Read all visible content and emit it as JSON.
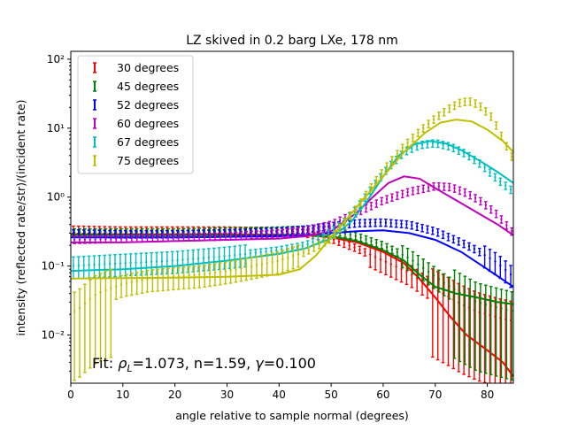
{
  "chart_data": {
    "type": "scatter",
    "title": "LZ skived in 0.2 barg LXe, 178 nm",
    "xlabel": "angle relative to sample normal (degrees)",
    "ylabel": "intensity (reflected rate/str)/(incident rate)",
    "xlim": [
      0,
      85
    ],
    "ylim": [
      0.002,
      130
    ],
    "yscale": "log",
    "xticks": [
      "0",
      "10",
      "20",
      "30",
      "40",
      "50",
      "60",
      "70",
      "80"
    ],
    "yticks": [
      "10⁻²",
      "10⁻¹",
      "10⁰",
      "10¹",
      "10²"
    ],
    "legend_position": "top-left",
    "annotation": {
      "prefix": "Fit: ",
      "rho": "ρ",
      "rho_sub": "L",
      "rho_value": "=1.073, n=1.59, ",
      "gamma": "γ",
      "gamma_value": "=0.100"
    },
    "series": [
      {
        "name": "30 degrees",
        "color": "#ff0000",
        "points": [
          [
            0,
            0.34
          ],
          [
            10,
            0.33
          ],
          [
            20,
            0.33
          ],
          [
            30,
            0.33
          ],
          [
            40,
            0.32
          ],
          [
            45,
            0.3
          ],
          [
            50,
            0.25
          ],
          [
            55,
            0.18
          ],
          [
            60,
            0.12
          ],
          [
            65,
            0.08
          ],
          [
            68,
            0.055
          ],
          [
            72,
            0.038
          ],
          [
            75,
            0.028
          ],
          [
            78,
            0.022
          ],
          [
            82,
            0.018
          ],
          [
            85,
            0.016
          ]
        ],
        "fit": [
          [
            0,
            0.29
          ],
          [
            10,
            0.29
          ],
          [
            20,
            0.29
          ],
          [
            30,
            0.29
          ],
          [
            40,
            0.285
          ],
          [
            45,
            0.28
          ],
          [
            50,
            0.26
          ],
          [
            55,
            0.22
          ],
          [
            60,
            0.16
          ],
          [
            64,
            0.11
          ],
          [
            67,
            0.065
          ],
          [
            70,
            0.035
          ],
          [
            73,
            0.018
          ],
          [
            76,
            0.01
          ],
          [
            80,
            0.006
          ],
          [
            83,
            0.004
          ],
          [
            85,
            0.0025
          ]
        ]
      },
      {
        "name": "45 degrees",
        "color": "#008000",
        "points": [
          [
            0,
            0.31
          ],
          [
            10,
            0.31
          ],
          [
            20,
            0.31
          ],
          [
            30,
            0.32
          ],
          [
            40,
            0.33
          ],
          [
            45,
            0.34
          ],
          [
            50,
            0.33
          ],
          [
            55,
            0.27
          ],
          [
            60,
            0.2
          ],
          [
            65,
            0.13
          ],
          [
            68,
            0.09
          ],
          [
            72,
            0.055
          ],
          [
            75,
            0.04
          ],
          [
            78,
            0.03
          ],
          [
            82,
            0.025
          ],
          [
            85,
            0.022
          ]
        ],
        "fit": [
          [
            0,
            0.28
          ],
          [
            10,
            0.28
          ],
          [
            20,
            0.28
          ],
          [
            30,
            0.28
          ],
          [
            40,
            0.28
          ],
          [
            45,
            0.28
          ],
          [
            50,
            0.27
          ],
          [
            55,
            0.23
          ],
          [
            60,
            0.17
          ],
          [
            64,
            0.12
          ],
          [
            67,
            0.075
          ],
          [
            70,
            0.05
          ],
          [
            74,
            0.04
          ],
          [
            78,
            0.035
          ],
          [
            82,
            0.03
          ],
          [
            85,
            0.028
          ]
        ]
      },
      {
        "name": "52 degrees",
        "color": "#0000ff",
        "points": [
          [
            0,
            0.3
          ],
          [
            10,
            0.29
          ],
          [
            20,
            0.29
          ],
          [
            30,
            0.3
          ],
          [
            40,
            0.32
          ],
          [
            45,
            0.34
          ],
          [
            50,
            0.38
          ],
          [
            55,
            0.42
          ],
          [
            60,
            0.43
          ],
          [
            65,
            0.4
          ],
          [
            70,
            0.32
          ],
          [
            75,
            0.22
          ],
          [
            78,
            0.17
          ],
          [
            82,
            0.11
          ],
          [
            85,
            0.07
          ]
        ],
        "fit": [
          [
            0,
            0.26
          ],
          [
            10,
            0.26
          ],
          [
            20,
            0.26
          ],
          [
            30,
            0.265
          ],
          [
            40,
            0.27
          ],
          [
            45,
            0.28
          ],
          [
            50,
            0.3
          ],
          [
            55,
            0.32
          ],
          [
            60,
            0.33
          ],
          [
            65,
            0.3
          ],
          [
            70,
            0.24
          ],
          [
            75,
            0.16
          ],
          [
            80,
            0.09
          ],
          [
            85,
            0.05
          ]
        ]
      },
      {
        "name": "60 degrees",
        "color": "#bf00bf",
        "points": [
          [
            0,
            0.24
          ],
          [
            10,
            0.25
          ],
          [
            20,
            0.26
          ],
          [
            30,
            0.27
          ],
          [
            40,
            0.3
          ],
          [
            45,
            0.33
          ],
          [
            50,
            0.4
          ],
          [
            55,
            0.6
          ],
          [
            60,
            0.9
          ],
          [
            65,
            1.2
          ],
          [
            70,
            1.45
          ],
          [
            73,
            1.4
          ],
          [
            76,
            1.15
          ],
          [
            79,
            0.85
          ],
          [
            82,
            0.55
          ],
          [
            85,
            0.3
          ]
        ],
        "fit": [
          [
            0,
            0.22
          ],
          [
            10,
            0.22
          ],
          [
            20,
            0.23
          ],
          [
            30,
            0.24
          ],
          [
            40,
            0.25
          ],
          [
            45,
            0.27
          ],
          [
            50,
            0.32
          ],
          [
            55,
            0.6
          ],
          [
            58,
            1.0
          ],
          [
            61,
            1.6
          ],
          [
            64,
            2.0
          ],
          [
            67,
            1.85
          ],
          [
            70,
            1.35
          ],
          [
            74,
            0.9
          ],
          [
            78,
            0.6
          ],
          [
            82,
            0.4
          ],
          [
            85,
            0.28
          ]
        ]
      },
      {
        "name": "67 degrees",
        "color": "#00bfbf",
        "points": [
          [
            0,
            0.1
          ],
          [
            10,
            0.11
          ],
          [
            20,
            0.12
          ],
          [
            30,
            0.14
          ],
          [
            40,
            0.17
          ],
          [
            45,
            0.2
          ],
          [
            48,
            0.25
          ],
          [
            52,
            0.4
          ],
          [
            55,
            0.7
          ],
          [
            58,
            1.4
          ],
          [
            61,
            2.7
          ],
          [
            64,
            4.5
          ],
          [
            67,
            5.7
          ],
          [
            70,
            6.1
          ],
          [
            73,
            5.4
          ],
          [
            76,
            4.2
          ],
          [
            79,
            2.9
          ],
          [
            82,
            1.8
          ],
          [
            85,
            1.2
          ]
        ],
        "fit": [
          [
            0,
            0.085
          ],
          [
            10,
            0.09
          ],
          [
            20,
            0.1
          ],
          [
            30,
            0.12
          ],
          [
            40,
            0.15
          ],
          [
            45,
            0.18
          ],
          [
            50,
            0.25
          ],
          [
            54,
            0.45
          ],
          [
            57,
            0.9
          ],
          [
            60,
            2.0
          ],
          [
            63,
            4.0
          ],
          [
            66,
            5.8
          ],
          [
            69,
            6.5
          ],
          [
            72,
            6.0
          ],
          [
            75,
            4.8
          ],
          [
            79,
            3.2
          ],
          [
            82,
            2.3
          ],
          [
            85,
            1.6
          ]
        ]
      },
      {
        "name": "75 degrees",
        "color": "#bfbf00",
        "points": [
          [
            1,
            0.022
          ],
          [
            3,
            0.03
          ],
          [
            5,
            0.04
          ],
          [
            10,
            0.055
          ],
          [
            15,
            0.065
          ],
          [
            20,
            0.07
          ],
          [
            25,
            0.075
          ],
          [
            30,
            0.085
          ],
          [
            35,
            0.1
          ],
          [
            40,
            0.12
          ],
          [
            45,
            0.16
          ],
          [
            50,
            0.25
          ],
          [
            55,
            0.7
          ],
          [
            58,
            1.5
          ],
          [
            61,
            3.0
          ],
          [
            64,
            5.5
          ],
          [
            67,
            9.0
          ],
          [
            70,
            14.0
          ],
          [
            73,
            20.0
          ],
          [
            75,
            24.0
          ],
          [
            77,
            24.5
          ],
          [
            79,
            20.0
          ],
          [
            81,
            14.0
          ],
          [
            83,
            7.0
          ],
          [
            85,
            3.5
          ]
        ],
        "fit": [
          [
            0,
            0.066
          ],
          [
            10,
            0.067
          ],
          [
            20,
            0.068
          ],
          [
            30,
            0.07
          ],
          [
            40,
            0.075
          ],
          [
            44,
            0.09
          ],
          [
            47,
            0.14
          ],
          [
            50,
            0.26
          ],
          [
            53,
            0.48
          ],
          [
            56,
            0.9
          ],
          [
            60,
            2.0
          ],
          [
            64,
            4.5
          ],
          [
            68,
            8.5
          ],
          [
            71,
            12.0
          ],
          [
            74,
            13.3
          ],
          [
            77,
            12.5
          ],
          [
            80,
            9.5
          ],
          [
            83,
            6.5
          ],
          [
            85,
            4.5
          ]
        ]
      }
    ]
  }
}
